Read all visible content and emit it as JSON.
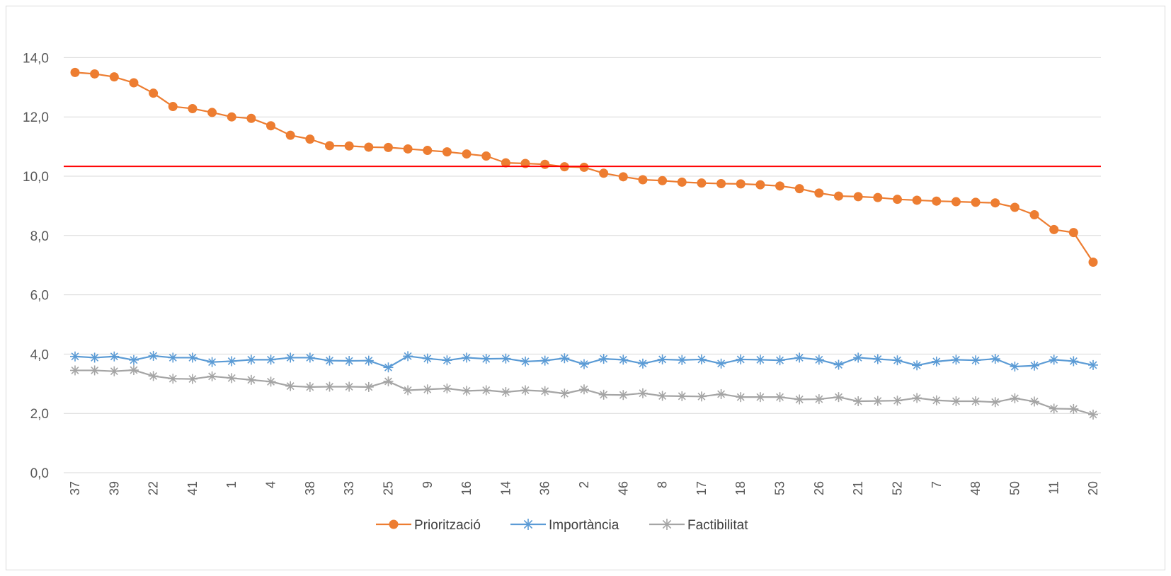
{
  "chart_data": {
    "type": "line",
    "categories": [
      "37",
      "",
      "39",
      "",
      "22",
      "",
      "41",
      "",
      "1",
      "",
      "4",
      "",
      "38",
      "",
      "33",
      "",
      "25",
      "",
      "9",
      "",
      "16",
      "",
      "14",
      "",
      "36",
      "",
      "2",
      "",
      "46",
      "",
      "8",
      "",
      "17",
      "",
      "18",
      "",
      "53",
      "",
      "26",
      "",
      "21",
      "",
      "52",
      "",
      "7",
      "",
      "48",
      "",
      "50",
      "",
      "11",
      "",
      "20"
    ],
    "series": [
      {
        "name": "Priorització",
        "color": "#ed7d31",
        "marker": "circle",
        "values": [
          13.5,
          13.45,
          13.35,
          13.15,
          12.8,
          12.35,
          12.28,
          12.15,
          12.0,
          11.95,
          11.7,
          11.38,
          11.25,
          11.03,
          11.02,
          10.98,
          10.97,
          10.92,
          10.87,
          10.82,
          10.75,
          10.68,
          10.45,
          10.43,
          10.4,
          10.32,
          10.3,
          10.1,
          9.98,
          9.88,
          9.85,
          9.8,
          9.77,
          9.75,
          9.74,
          9.71,
          9.67,
          9.58,
          9.43,
          9.33,
          9.31,
          9.28,
          9.22,
          9.19,
          9.16,
          9.14,
          9.12,
          9.1,
          8.95,
          8.7,
          8.2,
          8.1,
          7.1
        ]
      },
      {
        "name": "Importància",
        "color": "#5b9bd5",
        "marker": "star",
        "values": [
          3.92,
          3.88,
          3.92,
          3.8,
          3.94,
          3.88,
          3.88,
          3.73,
          3.76,
          3.81,
          3.81,
          3.88,
          3.88,
          3.78,
          3.77,
          3.78,
          3.55,
          3.93,
          3.85,
          3.79,
          3.88,
          3.84,
          3.85,
          3.75,
          3.78,
          3.86,
          3.66,
          3.84,
          3.81,
          3.68,
          3.82,
          3.8,
          3.82,
          3.68,
          3.82,
          3.81,
          3.79,
          3.88,
          3.81,
          3.64,
          3.88,
          3.83,
          3.79,
          3.62,
          3.75,
          3.81,
          3.79,
          3.84,
          3.58,
          3.61,
          3.81,
          3.76,
          3.63
        ]
      },
      {
        "name": "Factibilitat",
        "color": "#a5a5a5",
        "marker": "star",
        "values": [
          3.45,
          3.45,
          3.42,
          3.46,
          3.26,
          3.17,
          3.16,
          3.25,
          3.19,
          3.13,
          3.07,
          2.92,
          2.89,
          2.9,
          2.9,
          2.89,
          3.08,
          2.78,
          2.81,
          2.84,
          2.76,
          2.78,
          2.72,
          2.78,
          2.75,
          2.67,
          2.81,
          2.63,
          2.62,
          2.68,
          2.59,
          2.58,
          2.57,
          2.65,
          2.55,
          2.55,
          2.55,
          2.47,
          2.48,
          2.55,
          2.41,
          2.42,
          2.43,
          2.52,
          2.44,
          2.41,
          2.41,
          2.38,
          2.51,
          2.4,
          2.16,
          2.15,
          1.96
        ]
      }
    ],
    "reference_line": {
      "value": 10.33,
      "color": "#ff0000"
    },
    "yticks": [
      "0,0",
      "2,0",
      "4,0",
      "6,0",
      "8,0",
      "10,0",
      "12,0",
      "14,0"
    ],
    "ylim": [
      0,
      15
    ],
    "grid": true,
    "legend_position": "bottom",
    "title": "",
    "xlabel": "",
    "ylabel": ""
  }
}
